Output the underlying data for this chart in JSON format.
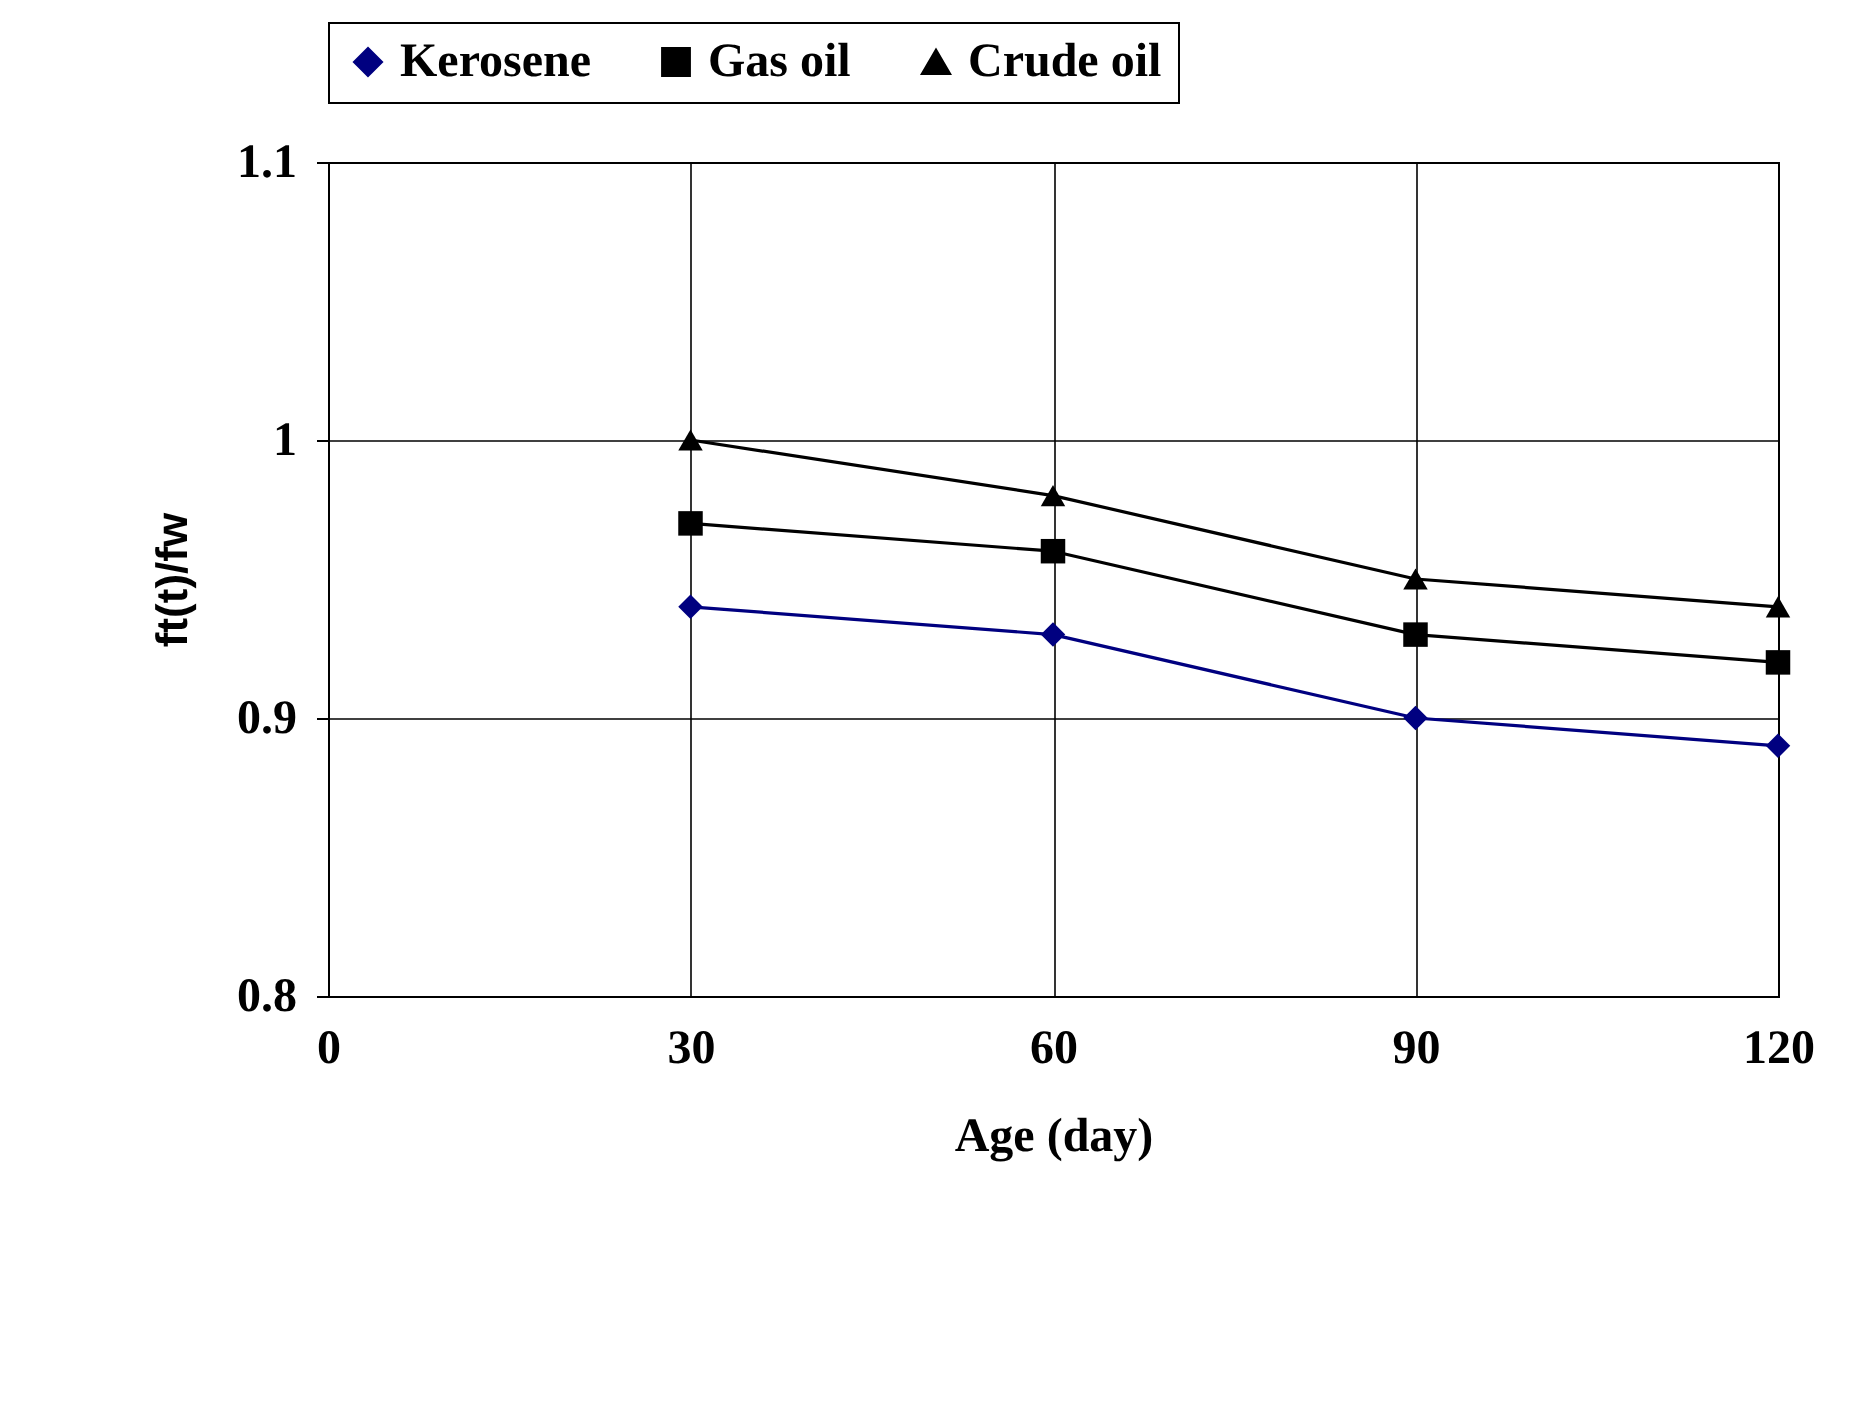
{
  "chart_data": {
    "type": "line",
    "xlabel": "Age (day)",
    "ylabel": "ft(t)/fw",
    "x": [
      30,
      60,
      90,
      120
    ],
    "series": [
      {
        "name": "Kerosene",
        "color": "#000080",
        "marker": "diamond",
        "values": [
          0.94,
          0.93,
          0.9,
          0.89
        ]
      },
      {
        "name": "Gas oil",
        "color": "#000000",
        "marker": "square",
        "values": [
          0.97,
          0.96,
          0.93,
          0.92
        ]
      },
      {
        "name": "Crude oil",
        "color": "#000000",
        "marker": "triangle",
        "values": [
          1.0,
          0.98,
          0.95,
          0.94
        ]
      }
    ],
    "xlim": [
      0,
      120
    ],
    "xticks": [
      0,
      30,
      60,
      90,
      120
    ],
    "ylim": [
      0.8,
      1.1
    ],
    "yticks": [
      0.8,
      0.9,
      1,
      1.1
    ],
    "grid": true,
    "legend": "top",
    "line_style": "solid"
  }
}
